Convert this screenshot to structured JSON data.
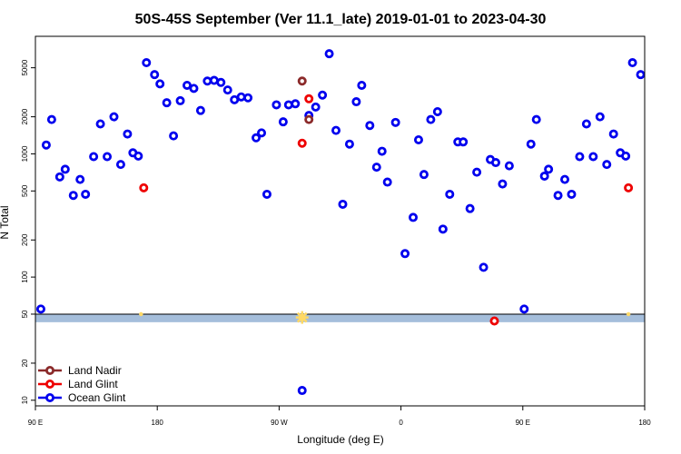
{
  "chart_data": {
    "type": "scatter",
    "title": "50S-45S September (Ver 11.1_late)   2019-01-01 to 2023-04-30",
    "xlabel": "Longitude (deg E)",
    "ylabel": "N Total",
    "y_scale": "log",
    "ylim": [
      9,
      9000
    ],
    "x_axis": {
      "description": "longitude 90E eastward through 180 to 180 (wraps)",
      "range": [
        0,
        450
      ],
      "ticks": [
        {
          "pos": 0,
          "label": "90 E"
        },
        {
          "pos": 90,
          "label": "180"
        },
        {
          "pos": 180,
          "label": "90 W"
        },
        {
          "pos": 270,
          "label": "0"
        },
        {
          "pos": 360,
          "label": "90 E"
        },
        {
          "pos": 450,
          "label": "180"
        }
      ]
    },
    "y_ticks": [
      10,
      20,
      50,
      100,
      200,
      500,
      1000,
      2000,
      5000
    ],
    "threshold_band": {
      "line": 50,
      "lower": 43,
      "color": "#a5bedb"
    },
    "colors": {
      "Ocean Glint": "#0000ee",
      "Land Glint": "#ee0000",
      "Land Nadir": "#8b2a2a",
      "sun_marker": "#ffd966"
    },
    "legend_position": "bottom-left",
    "legend": [
      {
        "label": "Land Nadir",
        "color": "#8b2a2a"
      },
      {
        "label": "Land Glint",
        "color": "#ee0000"
      },
      {
        "label": "Ocean Glint",
        "color": "#0000ee"
      }
    ],
    "series": [
      {
        "name": "Ocean Glint",
        "color": "#0000ee",
        "points": [
          [
            4,
            55
          ],
          [
            8,
            1180
          ],
          [
            12,
            1900
          ],
          [
            18,
            650
          ],
          [
            22,
            750
          ],
          [
            28,
            460
          ],
          [
            33,
            620
          ],
          [
            37,
            470
          ],
          [
            43,
            950
          ],
          [
            48,
            1750
          ],
          [
            53,
            950
          ],
          [
            58,
            2000
          ],
          [
            63,
            820
          ],
          [
            68,
            1450
          ],
          [
            72,
            1020
          ],
          [
            76,
            960
          ],
          [
            82,
            5500
          ],
          [
            88,
            4400
          ],
          [
            92,
            3700
          ],
          [
            97,
            2600
          ],
          [
            102,
            1400
          ],
          [
            107,
            2700
          ],
          [
            112,
            3600
          ],
          [
            117,
            3400
          ],
          [
            122,
            2250
          ],
          [
            127,
            3900
          ],
          [
            132,
            3950
          ],
          [
            137,
            3800
          ],
          [
            142,
            3300
          ],
          [
            147,
            2750
          ],
          [
            152,
            2900
          ],
          [
            157,
            2850
          ],
          [
            163,
            1350
          ],
          [
            167,
            1480
          ],
          [
            171,
            470
          ],
          [
            178,
            2500
          ],
          [
            183,
            1820
          ],
          [
            187,
            2500
          ],
          [
            192,
            2550
          ],
          [
            197,
            12
          ],
          [
            202,
            2050
          ],
          [
            207,
            2400
          ],
          [
            212,
            3000
          ],
          [
            217,
            6500
          ],
          [
            222,
            1550
          ],
          [
            227,
            390
          ],
          [
            232,
            1200
          ],
          [
            237,
            2650
          ],
          [
            241,
            3600
          ],
          [
            247,
            1700
          ],
          [
            252,
            780
          ],
          [
            256,
            1050
          ],
          [
            260,
            590
          ],
          [
            266,
            1800
          ],
          [
            273,
            155
          ],
          [
            279,
            305
          ],
          [
            283,
            1300
          ],
          [
            287,
            680
          ],
          [
            292,
            1900
          ],
          [
            297,
            2200
          ],
          [
            301,
            245
          ],
          [
            306,
            470
          ],
          [
            312,
            1250
          ],
          [
            316,
            1250
          ],
          [
            321,
            360
          ],
          [
            326,
            710
          ],
          [
            331,
            120
          ],
          [
            336,
            900
          ],
          [
            340,
            850
          ],
          [
            345,
            570
          ],
          [
            350,
            800
          ],
          [
            361,
            55
          ],
          [
            366,
            1200
          ],
          [
            370,
            1900
          ],
          [
            376,
            660
          ],
          [
            379,
            750
          ],
          [
            386,
            460
          ],
          [
            391,
            620
          ],
          [
            396,
            470
          ],
          [
            402,
            950
          ],
          [
            407,
            1750
          ],
          [
            412,
            950
          ],
          [
            417,
            2000
          ],
          [
            422,
            820
          ],
          [
            427,
            1450
          ],
          [
            432,
            1020
          ],
          [
            436,
            960
          ],
          [
            441,
            5500
          ],
          [
            447,
            4400
          ]
        ]
      },
      {
        "name": "Land Glint",
        "color": "#ee0000",
        "points": [
          [
            80,
            530
          ],
          [
            197,
            1220
          ],
          [
            202,
            2800
          ],
          [
            339,
            44
          ],
          [
            438,
            530
          ]
        ]
      },
      {
        "name": "Land Nadir",
        "color": "#8b2a2a",
        "points": [
          [
            197,
            3900
          ],
          [
            202,
            1900
          ]
        ]
      }
    ],
    "sun_markers": [
      {
        "x": 78,
        "y": 50
      },
      {
        "x": 197,
        "y": 47
      },
      {
        "x": 438,
        "y": 50
      }
    ]
  }
}
